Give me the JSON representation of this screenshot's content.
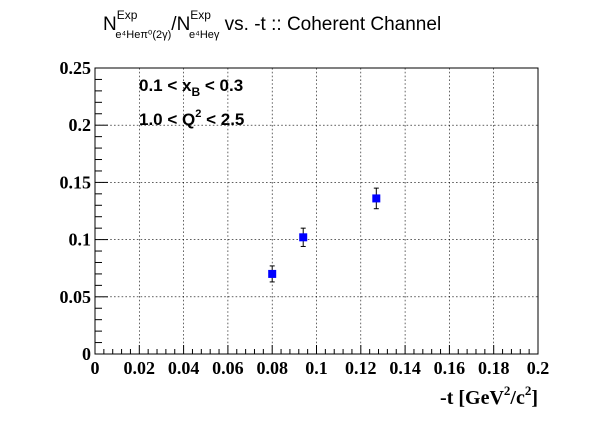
{
  "chart_data": {
    "type": "scatter",
    "title": {
      "num_base": "N",
      "num_sup": "Exp",
      "num_sub": "e⁴Heπ⁰(2γ)",
      "slash": "/",
      "den_base": "N",
      "den_sup": "Exp",
      "den_sub": "e⁴Heγ",
      "rest": " vs. -t :: Coherent Channel"
    },
    "xlabel": {
      "pre": "-t [GeV",
      "sup1": "2",
      "mid": "/c",
      "sup2": "2",
      "post": "]"
    },
    "ylabel": "",
    "xlim": [
      0,
      0.2
    ],
    "ylim": [
      0,
      0.25
    ],
    "xticks": [
      "0",
      "0.02",
      "0.04",
      "0.06",
      "0.08",
      "0.1",
      "0.12",
      "0.14",
      "0.16",
      "0.18",
      "0.2"
    ],
    "yticks": [
      "0",
      "0.05",
      "0.1",
      "0.15",
      "0.2",
      "0.25"
    ],
    "grid": true,
    "annotations": {
      "xb": {
        "pre": "0.1 < x",
        "sub": "B",
        "post": " < 0.3"
      },
      "q2": {
        "pre": "1.0 < Q",
        "sup": "2",
        "post": " < 2.5"
      }
    },
    "series": [
      {
        "color": "#0000ff",
        "marker": "square",
        "points": [
          {
            "x": 0.08,
            "y": 0.07,
            "err": 0.007
          },
          {
            "x": 0.094,
            "y": 0.102,
            "err": 0.008
          },
          {
            "x": 0.127,
            "y": 0.136,
            "err": 0.009
          }
        ]
      }
    ]
  }
}
